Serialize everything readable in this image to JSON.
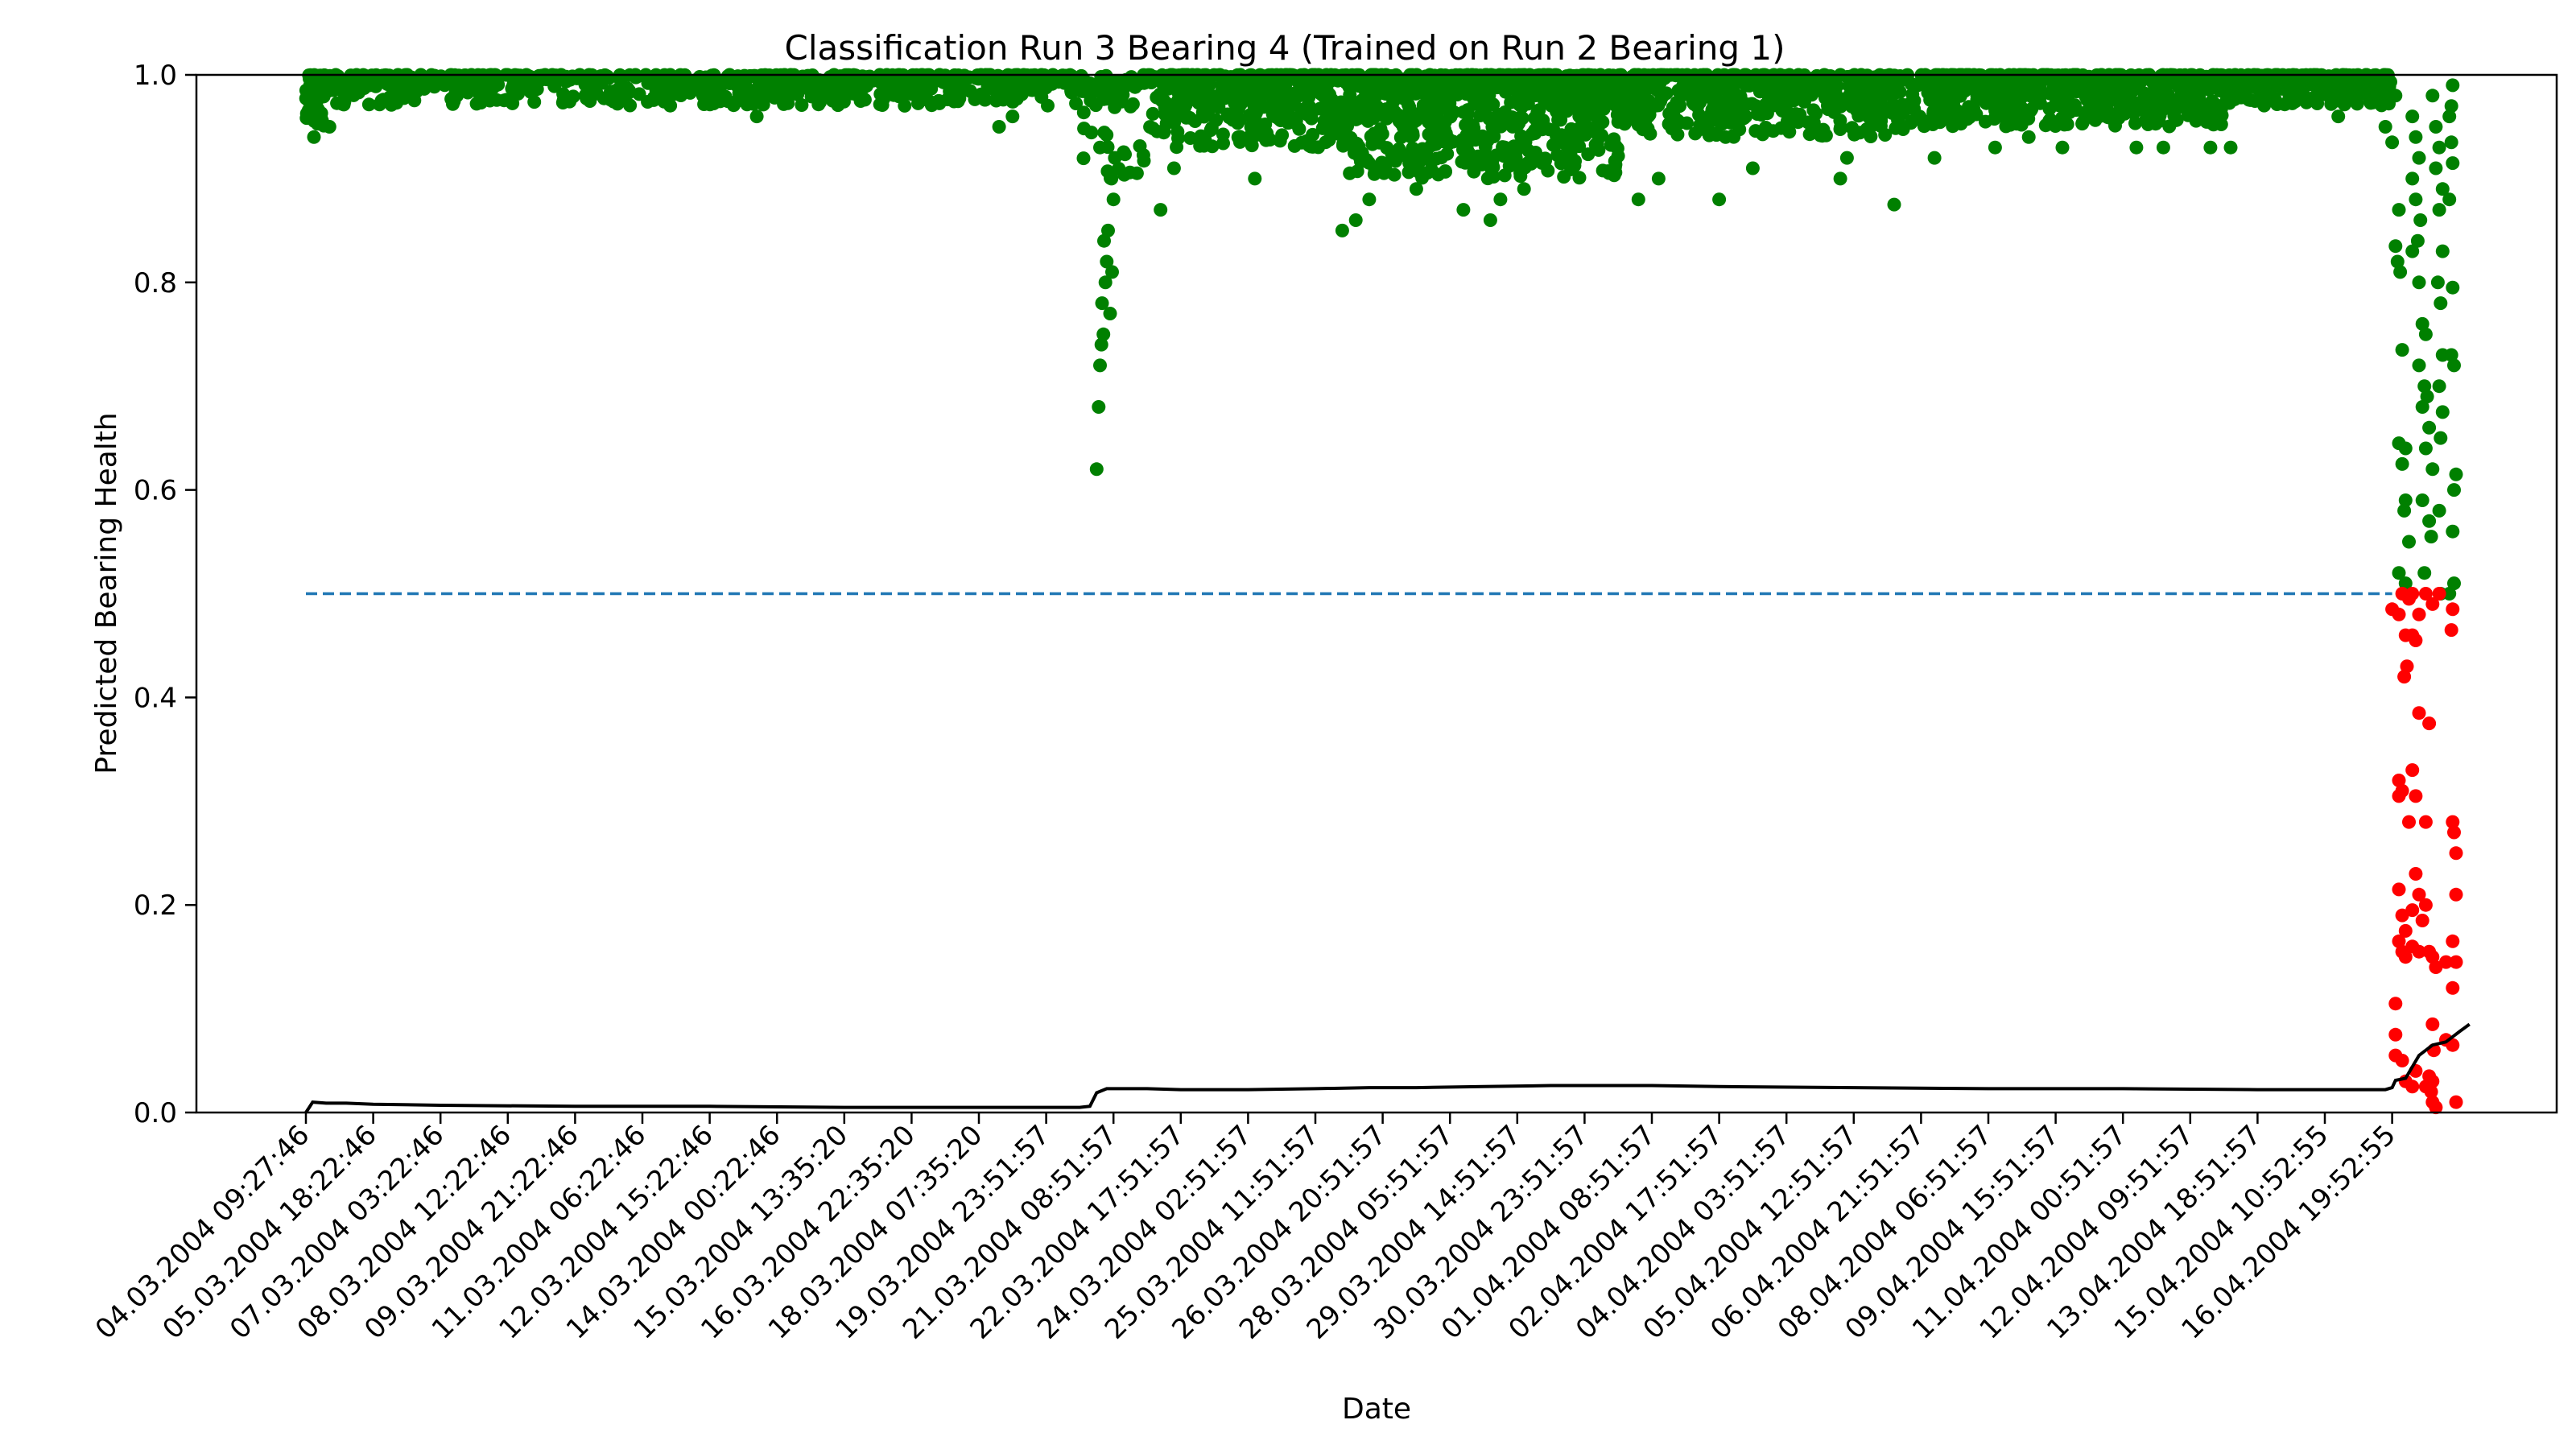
{
  "chart_data": {
    "type": "scatter",
    "title": "Classification Run 3 Bearing 4 (Trained on Run 2 Bearing 1)",
    "xlabel": "Date",
    "ylabel": "Predicted Bearing Health",
    "ylim": [
      0.0,
      1.0
    ],
    "y_ticks": [
      "0.0",
      "0.2",
      "0.4",
      "0.6",
      "0.8",
      "1.0"
    ],
    "y_tick_values": [
      0.0,
      0.2,
      0.4,
      0.6,
      0.8,
      1.0
    ],
    "x_tick_labels": [
      "04.03.2004 09:27:46",
      "05.03.2004 18:22:46",
      "07.03.2004 03:22:46",
      "08.03.2004 12:22:46",
      "09.03.2004 21:22:46",
      "11.03.2004 06:22:46",
      "12.03.2004 15:22:46",
      "14.03.2004 00:22:46",
      "15.03.2004 13:35:20",
      "16.03.2004 22:35:20",
      "18.03.2004 07:35:20",
      "19.03.2004 23:51:57",
      "21.03.2004 08:51:57",
      "22.03.2004 17:51:57",
      "24.03.2004 02:51:57",
      "25.03.2004 11:51:57",
      "26.03.2004 20:51:57",
      "28.03.2004 05:51:57",
      "29.03.2004 14:51:57",
      "30.03.2004 23:51:57",
      "01.04.2004 08:51:57",
      "02.04.2004 17:51:57",
      "04.04.2004 03:51:57",
      "05.04.2004 12:51:57",
      "06.04.2004 21:51:57",
      "08.04.2004 06:51:57",
      "09.04.2004 15:51:57",
      "11.04.2004 00:51:57",
      "12.04.2004 09:51:57",
      "13.04.2004 18:51:57",
      "15.04.2004 10:52:55",
      "16.04.2004 19:52:55"
    ],
    "grid": false,
    "colors": {
      "healthy": "#008000",
      "faulty": "#ff0000",
      "threshold": "#1f77b4",
      "trend": "#000000"
    },
    "series": [
      {
        "kind": "threshold",
        "style": "dashed",
        "x_range": [
          0,
          31.0
        ],
        "y": 0.5
      },
      {
        "kind": "trend-line",
        "points": [
          [
            0,
            0.0
          ],
          [
            0.05,
            0.005
          ],
          [
            0.1,
            0.01
          ],
          [
            0.3,
            0.009
          ],
          [
            0.6,
            0.009
          ],
          [
            1,
            0.008
          ],
          [
            2,
            0.007
          ],
          [
            4,
            0.006
          ],
          [
            6,
            0.006
          ],
          [
            8,
            0.005
          ],
          [
            10,
            0.005
          ],
          [
            11.5,
            0.005
          ],
          [
            11.65,
            0.006
          ],
          [
            11.75,
            0.019
          ],
          [
            11.9,
            0.023
          ],
          [
            12.5,
            0.023
          ],
          [
            13,
            0.022
          ],
          [
            14,
            0.022
          ],
          [
            15,
            0.023
          ],
          [
            15.8,
            0.024
          ],
          [
            16.5,
            0.024
          ],
          [
            17.5,
            0.025
          ],
          [
            18.5,
            0.026
          ],
          [
            20,
            0.026
          ],
          [
            21,
            0.025
          ],
          [
            23,
            0.024
          ],
          [
            25,
            0.023
          ],
          [
            27,
            0.023
          ],
          [
            29,
            0.022
          ],
          [
            30.9,
            0.022
          ],
          [
            31,
            0.024
          ],
          [
            31.05,
            0.031
          ],
          [
            31.2,
            0.033
          ],
          [
            31.4,
            0.055
          ],
          [
            31.6,
            0.065
          ],
          [
            31.8,
            0.068
          ],
          [
            32.0,
            0.078
          ],
          [
            32.15,
            0.085
          ]
        ]
      }
    ],
    "scatter_segments": [
      {
        "x_range": [
          0,
          0.3
        ],
        "y_min": 0.95,
        "y_max": 1.0,
        "count": 50
      },
      {
        "x_range": [
          0.3,
          11.5
        ],
        "y_min": 0.97,
        "y_max": 1.0,
        "count": 700
      },
      {
        "x_range": [
          11.5,
          12.5
        ],
        "y_min": 0.9,
        "y_max": 1.0,
        "count": 60
      },
      {
        "x_range": [
          12.5,
          15.5
        ],
        "y_min": 0.93,
        "y_max": 1.0,
        "count": 400
      },
      {
        "x_range": [
          15.5,
          19.5
        ],
        "y_min": 0.9,
        "y_max": 1.0,
        "count": 700
      },
      {
        "x_range": [
          19.5,
          24
        ],
        "y_min": 0.94,
        "y_max": 1.0,
        "count": 500
      },
      {
        "x_range": [
          24,
          28.5
        ],
        "y_min": 0.95,
        "y_max": 1.0,
        "count": 600
      },
      {
        "x_range": [
          28.5,
          31
        ],
        "y_min": 0.97,
        "y_max": 1.0,
        "count": 300
      }
    ],
    "scatter_points": [
      [
        0.12,
        0.94
      ],
      [
        0.2,
        0.96
      ],
      [
        0.35,
        0.95
      ],
      [
        6.7,
        0.96
      ],
      [
        10.3,
        0.95
      ],
      [
        10.5,
        0.96
      ],
      [
        11.75,
        0.62
      ],
      [
        11.78,
        0.68
      ],
      [
        11.8,
        0.72
      ],
      [
        11.82,
        0.74
      ],
      [
        11.85,
        0.75
      ],
      [
        11.83,
        0.78
      ],
      [
        11.88,
        0.8
      ],
      [
        11.9,
        0.82
      ],
      [
        11.86,
        0.84
      ],
      [
        11.92,
        0.85
      ],
      [
        11.95,
        0.77
      ],
      [
        11.98,
        0.81
      ],
      [
        12.0,
        0.88
      ],
      [
        11.97,
        0.9
      ],
      [
        12.02,
        0.92
      ],
      [
        11.8,
        0.93
      ],
      [
        12.7,
        0.87
      ],
      [
        12.9,
        0.91
      ],
      [
        14.1,
        0.9
      ],
      [
        15.4,
        0.85
      ],
      [
        15.6,
        0.86
      ],
      [
        15.8,
        0.88
      ],
      [
        16.5,
        0.89
      ],
      [
        17.2,
        0.87
      ],
      [
        17.6,
        0.86
      ],
      [
        17.75,
        0.88
      ],
      [
        18.1,
        0.89
      ],
      [
        19.8,
        0.88
      ],
      [
        20.1,
        0.9
      ],
      [
        21.0,
        0.88
      ],
      [
        21.5,
        0.91
      ],
      [
        22.8,
        0.9
      ],
      [
        22.9,
        0.92
      ],
      [
        23.6,
        0.875
      ],
      [
        24.2,
        0.92
      ],
      [
        25.1,
        0.93
      ],
      [
        25.6,
        0.94
      ],
      [
        26.1,
        0.93
      ],
      [
        27.2,
        0.93
      ],
      [
        27.6,
        0.93
      ],
      [
        28.3,
        0.93
      ],
      [
        28.6,
        0.93
      ],
      [
        30.2,
        0.96
      ],
      [
        31.0,
        0.935
      ],
      [
        30.9,
        0.95
      ],
      [
        31.05,
        0.98
      ],
      [
        31.1,
        0.87
      ],
      [
        31.05,
        0.835
      ],
      [
        31.08,
        0.82
      ],
      [
        31.12,
        0.81
      ],
      [
        31.15,
        0.735
      ],
      [
        31.1,
        0.645
      ],
      [
        31.2,
        0.64
      ],
      [
        31.15,
        0.625
      ],
      [
        31.2,
        0.59
      ],
      [
        31.18,
        0.58
      ],
      [
        31.25,
        0.55
      ],
      [
        31.1,
        0.52
      ],
      [
        31.2,
        0.51
      ],
      [
        31.3,
        0.96
      ],
      [
        31.35,
        0.94
      ],
      [
        31.4,
        0.92
      ],
      [
        31.3,
        0.9
      ],
      [
        31.35,
        0.88
      ],
      [
        31.42,
        0.86
      ],
      [
        31.38,
        0.84
      ],
      [
        31.3,
        0.83
      ],
      [
        31.4,
        0.8
      ],
      [
        31.45,
        0.76
      ],
      [
        31.5,
        0.75
      ],
      [
        31.4,
        0.72
      ],
      [
        31.48,
        0.7
      ],
      [
        31.52,
        0.69
      ],
      [
        31.45,
        0.68
      ],
      [
        31.55,
        0.66
      ],
      [
        31.5,
        0.64
      ],
      [
        31.6,
        0.62
      ],
      [
        31.45,
        0.59
      ],
      [
        31.55,
        0.57
      ],
      [
        31.58,
        0.555
      ],
      [
        31.48,
        0.52
      ],
      [
        31.6,
        0.98
      ],
      [
        31.65,
        0.95
      ],
      [
        31.7,
        0.93
      ],
      [
        31.65,
        0.91
      ],
      [
        31.75,
        0.89
      ],
      [
        31.7,
        0.87
      ],
      [
        31.75,
        0.83
      ],
      [
        31.68,
        0.8
      ],
      [
        31.72,
        0.78
      ],
      [
        31.75,
        0.73
      ],
      [
        31.7,
        0.7
      ],
      [
        31.75,
        0.675
      ],
      [
        31.72,
        0.65
      ],
      [
        31.7,
        0.58
      ],
      [
        31.72,
        0.5
      ],
      [
        31.85,
        0.96
      ],
      [
        31.88,
        0.935
      ],
      [
        31.9,
        0.915
      ],
      [
        31.85,
        0.88
      ],
      [
        31.9,
        0.795
      ],
      [
        31.88,
        0.73
      ],
      [
        31.92,
        0.72
      ],
      [
        31.95,
        0.615
      ],
      [
        31.92,
        0.6
      ],
      [
        31.9,
        0.56
      ],
      [
        31.92,
        0.51
      ],
      [
        31.85,
        0.5
      ],
      [
        31.88,
        0.97
      ],
      [
        31.9,
        0.99
      ]
    ],
    "faulty_points": [
      [
        31.0,
        0.485
      ],
      [
        31.1,
        0.48
      ],
      [
        31.15,
        0.5
      ],
      [
        31.25,
        0.495
      ],
      [
        31.3,
        0.5
      ],
      [
        31.4,
        0.48
      ],
      [
        31.5,
        0.5
      ],
      [
        31.6,
        0.49
      ],
      [
        31.7,
        0.5
      ],
      [
        31.9,
        0.485
      ],
      [
        31.2,
        0.46
      ],
      [
        31.3,
        0.46
      ],
      [
        31.35,
        0.455
      ],
      [
        31.22,
        0.43
      ],
      [
        31.18,
        0.42
      ],
      [
        31.88,
        0.465
      ],
      [
        31.4,
        0.385
      ],
      [
        31.55,
        0.375
      ],
      [
        31.1,
        0.32
      ],
      [
        31.15,
        0.31
      ],
      [
        31.1,
        0.305
      ],
      [
        31.3,
        0.33
      ],
      [
        31.35,
        0.305
      ],
      [
        31.25,
        0.28
      ],
      [
        31.5,
        0.28
      ],
      [
        31.9,
        0.28
      ],
      [
        31.92,
        0.27
      ],
      [
        31.95,
        0.25
      ],
      [
        31.35,
        0.23
      ],
      [
        31.4,
        0.21
      ],
      [
        31.5,
        0.2
      ],
      [
        31.45,
        0.185
      ],
      [
        31.3,
        0.195
      ],
      [
        31.1,
        0.215
      ],
      [
        31.95,
        0.21
      ],
      [
        31.15,
        0.19
      ],
      [
        31.2,
        0.175
      ],
      [
        31.1,
        0.165
      ],
      [
        31.15,
        0.155
      ],
      [
        31.2,
        0.15
      ],
      [
        31.3,
        0.16
      ],
      [
        31.4,
        0.155
      ],
      [
        31.55,
        0.155
      ],
      [
        31.6,
        0.15
      ],
      [
        31.65,
        0.14
      ],
      [
        31.8,
        0.145
      ],
      [
        31.9,
        0.165
      ],
      [
        31.95,
        0.145
      ],
      [
        31.9,
        0.12
      ],
      [
        31.05,
        0.105
      ],
      [
        31.05,
        0.075
      ],
      [
        31.6,
        0.085
      ],
      [
        31.62,
        0.06
      ],
      [
        31.8,
        0.07
      ],
      [
        31.9,
        0.065
      ],
      [
        31.05,
        0.055
      ],
      [
        31.15,
        0.05
      ],
      [
        31.35,
        0.04
      ],
      [
        31.55,
        0.035
      ],
      [
        31.6,
        0.03
      ],
      [
        31.2,
        0.03
      ],
      [
        31.3,
        0.025
      ],
      [
        31.58,
        0.02
      ],
      [
        31.6,
        0.01
      ],
      [
        31.65,
        0.005
      ],
      [
        31.95,
        0.01
      ],
      [
        31.5,
        0.025
      ]
    ],
    "legend": false
  }
}
